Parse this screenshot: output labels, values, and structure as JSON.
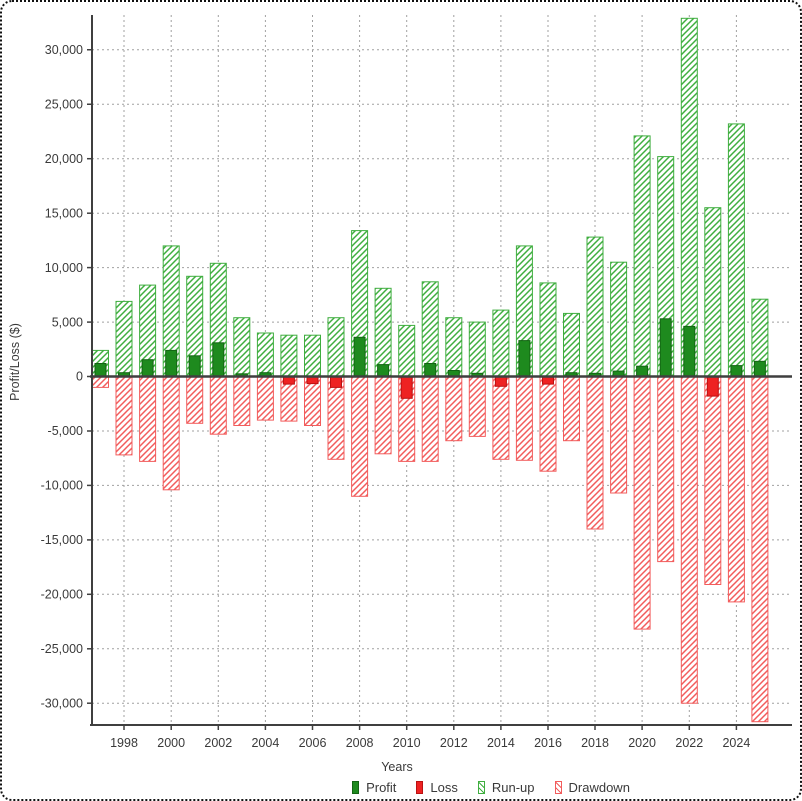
{
  "chart_data": {
    "type": "bar",
    "title": "",
    "xlabel": "Years",
    "ylabel": "Profit/Loss ($)",
    "ylim": [
      -32000,
      33200
    ],
    "grid": true,
    "y_ticks": [
      30000,
      25000,
      20000,
      15000,
      10000,
      5000,
      0,
      -5000,
      -10000,
      -15000,
      -20000,
      -25000,
      -30000
    ],
    "xtick_labels": [
      "1998",
      "2000",
      "2002",
      "2004",
      "2006",
      "2008",
      "2010",
      "2012",
      "2014",
      "2016",
      "2018",
      "2020",
      "2022",
      "2024"
    ],
    "categories": [
      1997,
      1998,
      1999,
      2000,
      2001,
      2002,
      2003,
      2004,
      2005,
      2006,
      2007,
      2008,
      2009,
      2010,
      2011,
      2012,
      2013,
      2014,
      2015,
      2016,
      2017,
      2018,
      2019,
      2020,
      2021,
      2022,
      2023,
      2024,
      2025
    ],
    "series": [
      {
        "name": "Profit",
        "style": "solid",
        "color": "#1e8a1e",
        "values": [
          1200,
          350,
          1550,
          2400,
          1900,
          3100,
          250,
          350,
          null,
          null,
          null,
          3600,
          1100,
          null,
          1200,
          550,
          300,
          null,
          3300,
          null,
          350,
          300,
          500,
          950,
          5300,
          4600,
          null,
          1000,
          1400
        ]
      },
      {
        "name": "Loss",
        "style": "solid",
        "color": "#ee2222",
        "values": [
          null,
          null,
          null,
          null,
          null,
          null,
          null,
          null,
          -700,
          -650,
          -1000,
          null,
          null,
          -2000,
          null,
          null,
          null,
          -900,
          null,
          -700,
          null,
          null,
          null,
          null,
          null,
          null,
          -1800,
          null,
          null
        ]
      },
      {
        "name": "Run-up",
        "style": "hatch",
        "color": "#3fae3f",
        "values": [
          2400,
          6900,
          8400,
          12000,
          9200,
          10400,
          5400,
          4000,
          3800,
          3800,
          5400,
          13400,
          8100,
          4700,
          8700,
          5400,
          5000,
          6100,
          12000,
          8600,
          5800,
          12800,
          10500,
          22100,
          20200,
          32900,
          15500,
          23200,
          7100
        ]
      },
      {
        "name": "Drawdown",
        "style": "hatch",
        "color": "#f25c5c",
        "values": [
          -1000,
          -7200,
          -7800,
          -10400,
          -4300,
          -5300,
          -4500,
          -4000,
          -4100,
          -4500,
          -7600,
          -11000,
          -7100,
          -7800,
          -7800,
          -5900,
          -5500,
          -7600,
          -7700,
          -8700,
          -5900,
          -14000,
          -10700,
          -23200,
          -17000,
          -30000,
          -19100,
          -20700,
          -31700
        ]
      }
    ],
    "legend": {
      "position": "bottom",
      "items": [
        "Profit",
        "Loss",
        "Run-up",
        "Drawdown"
      ]
    }
  },
  "colors": {
    "profit_fill": "#1e8a1e",
    "profit_stroke": "#136413",
    "loss_fill": "#ee2222",
    "loss_stroke": "#bb1111",
    "runup_hatch": "#3fae3f",
    "drawdown_hatch": "#f25c5c",
    "grid": "#a0a0a0",
    "axis": "#3f3f3f",
    "text": "#3a3a3a"
  }
}
